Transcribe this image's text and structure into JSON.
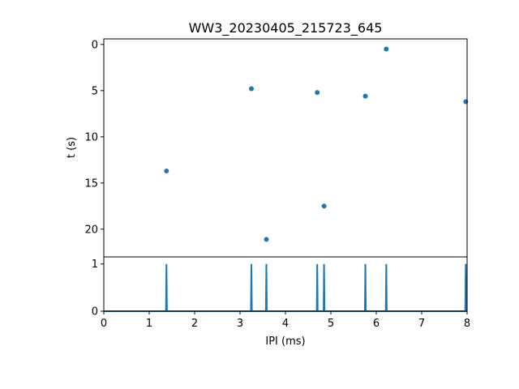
{
  "chart_data": [
    {
      "type": "scatter",
      "title": "WW3_20230405_215723_645",
      "ylabel": "t (s)",
      "xlabel": "",
      "xlim": [
        0,
        8
      ],
      "ylim": [
        23,
        -0.6
      ],
      "y_inverted": true,
      "yticks": [
        0,
        5,
        10,
        15,
        20
      ],
      "color": "#1f77b4",
      "points": [
        {
          "x": 1.38,
          "y": 13.7
        },
        {
          "x": 3.25,
          "y": 4.8
        },
        {
          "x": 3.58,
          "y": 21.1
        },
        {
          "x": 4.7,
          "y": 5.2
        },
        {
          "x": 4.85,
          "y": 17.5
        },
        {
          "x": 5.76,
          "y": 5.6
        },
        {
          "x": 6.22,
          "y": 0.5
        },
        {
          "x": 7.97,
          "y": 6.2
        }
      ]
    },
    {
      "type": "line",
      "xlabel": "IPI (ms)",
      "ylabel": "",
      "xlim": [
        0,
        8
      ],
      "ylim": [
        0,
        1.15
      ],
      "xticks": [
        0,
        1,
        2,
        3,
        4,
        5,
        6,
        7,
        8
      ],
      "yticks": [
        0,
        1
      ],
      "color": "#1f77b4",
      "spikes_x": [
        1.38,
        3.25,
        3.58,
        4.7,
        4.85,
        5.76,
        6.22,
        7.97
      ],
      "spike_height": 1
    }
  ]
}
